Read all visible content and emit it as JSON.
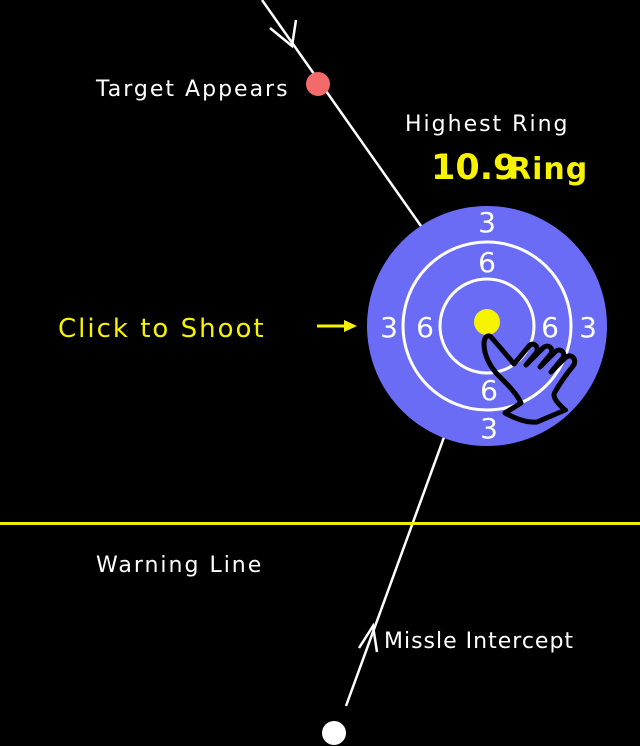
{
  "colors": {
    "background": "#000000",
    "target_fill": "#6a6cf6",
    "ring_stroke": "#ffffff",
    "bullseye": "#f7f200",
    "warning_line": "#f0ec00",
    "highlight_text": "#f7f200",
    "target_marker": "#f26a6a",
    "launcher_marker": "#ffffff",
    "text": "#ffffff",
    "hand_stroke": "#000000"
  },
  "labels": {
    "target_appears": "Target Appears",
    "highest_ring_title": "Highest Ring",
    "highest_ring_value": "10.9",
    "highest_ring_unit": "Ring",
    "click_to_shoot": "Click to Shoot",
    "warning_line": "Warning Line",
    "missile_intercept": "Missle Intercept"
  },
  "target": {
    "outer_ring_numbers": {
      "top": "3",
      "left": "3",
      "right": "3",
      "bottom": "3"
    },
    "inner_ring_numbers": {
      "top": "6",
      "left": "6",
      "right": "6",
      "bottom": "6"
    }
  },
  "icons": {
    "hand": "pointing-hand-icon",
    "click_arrow": "arrow-right-icon",
    "trajectory_arrow": "arrowhead-icon"
  }
}
